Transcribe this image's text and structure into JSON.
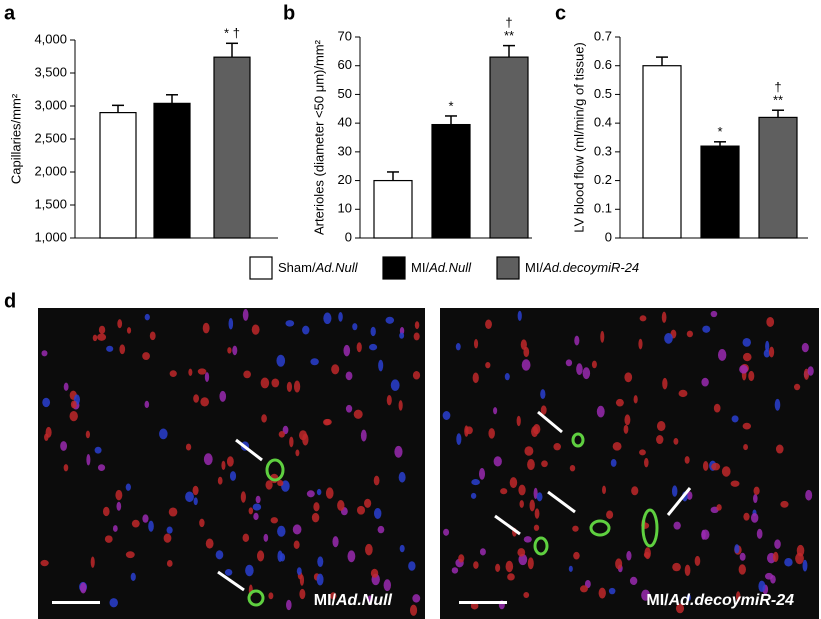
{
  "panels": [
    "a",
    "b",
    "c",
    "d"
  ],
  "chart_data": [
    {
      "type": "bar",
      "ylabel": "Capillaries/mm²",
      "values": [
        2900,
        3040,
        3740
      ],
      "errors": [
        110,
        130,
        210
      ],
      "annotations": [
        null,
        null,
        [
          "* †"
        ]
      ],
      "ylim": [
        1000,
        4000
      ],
      "yticks": [
        {
          "value": 1000,
          "label": "1,000"
        },
        {
          "value": 1500,
          "label": "1,500"
        },
        {
          "value": 2000,
          "label": "2,000"
        },
        {
          "value": 2500,
          "label": "2,500"
        },
        {
          "value": 3000,
          "label": "3,000"
        },
        {
          "value": 3500,
          "label": "3,500"
        },
        {
          "value": 4000,
          "label": "4,000"
        }
      ]
    },
    {
      "type": "bar",
      "ylabel": "Arterioles (diameter <50 μm)/mm²",
      "values": [
        20,
        39.5,
        63
      ],
      "errors": [
        3,
        3,
        4
      ],
      "annotations": [
        null,
        [
          "*"
        ],
        [
          "†",
          "**"
        ]
      ],
      "ylim": [
        0,
        70
      ],
      "yticks": [
        0,
        10,
        20,
        30,
        40,
        50,
        60,
        70
      ]
    },
    {
      "type": "bar",
      "ylabel": "LV blood flow (ml/min/g of tissue)",
      "values": [
        0.6,
        0.32,
        0.42
      ],
      "errors": [
        0.03,
        0.015,
        0.025
      ],
      "annotations": [
        null,
        [
          "*"
        ],
        [
          "†",
          "**"
        ]
      ],
      "ylim": [
        0,
        0.7
      ],
      "yticks": [
        0,
        0.1,
        0.2,
        0.3,
        0.4,
        0.5,
        0.6,
        0.7
      ]
    }
  ],
  "legend": [
    {
      "name": "Sham/Ad.Null",
      "color": "#ffffff"
    },
    {
      "name": "MI/Ad.Null",
      "color": "#000000"
    },
    {
      "name": "MI/Ad.decoymiR-24",
      "color": "#5f5f5f"
    }
  ],
  "images": [
    {
      "label": "MI/Ad.Null"
    },
    {
      "label": "MI/Ad.decoymiR-24"
    }
  ]
}
